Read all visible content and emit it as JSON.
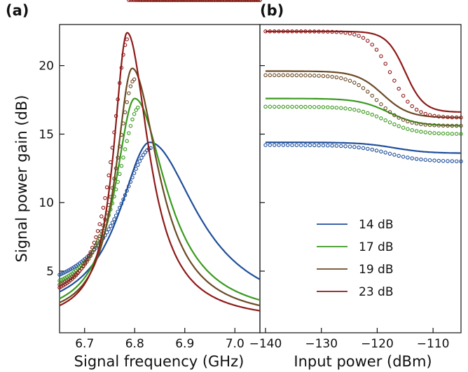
{
  "chart_data": [
    {
      "panel": "(a)",
      "type": "line",
      "xlabel": "Signal frequency (GHz)",
      "ylabel": "Signal power gain (dB)",
      "xlim": [
        6.65,
        7.05
      ],
      "ylim": [
        0.5,
        23
      ],
      "xticks": [
        6.7,
        6.8,
        6.9,
        7.0
      ],
      "yticks": [
        5,
        10,
        15,
        20
      ],
      "xtick_labels": [
        "6.7",
        "6.8",
        "6.9",
        "7.0"
      ],
      "ytick_labels": [
        "5",
        "10",
        "15",
        "20"
      ],
      "grid": false,
      "series": [
        {
          "color": "#1f4e9a",
          "fit": {
            "peak_f": 6.83,
            "peak_g": 14.4,
            "width": 0.075,
            "tail": 1.6,
            "skew": 0.55
          },
          "measured": {
            "peak_f": 6.835,
            "peak_g": 14.0,
            "width": 0.08,
            "tail": 3.0,
            "shoulder": {
              "f": 6.96,
              "g": 1.6
            }
          }
        },
        {
          "color": "#3a9a1e",
          "fit": {
            "peak_f": 6.8,
            "peak_g": 17.6,
            "width": 0.048,
            "tail": 1.5,
            "skew": 0.6
          },
          "measured": {
            "peak_f": 6.81,
            "peak_g": 17.0,
            "width": 0.055,
            "tail": 2.8,
            "shoulder": {
              "f": 6.95,
              "g": 1.2
            }
          }
        },
        {
          "color": "#6b4a24",
          "fit": {
            "peak_f": 6.795,
            "peak_g": 19.8,
            "width": 0.04,
            "tail": 1.4,
            "skew": 0.6
          },
          "measured": {
            "peak_f": 6.8,
            "peak_g": 19.0,
            "width": 0.046,
            "tail": 2.6,
            "shoulder": {
              "f": 6.95,
              "g": 1.0
            }
          }
        },
        {
          "color": "#8e1a1a",
          "fit": {
            "peak_f": 6.785,
            "peak_g": 22.4,
            "width": 0.033,
            "tail": 1.3,
            "skew": 0.6
          },
          "measured": {
            "peak_f": 6.787,
            "peak_g": 22.0,
            "width": 0.038,
            "tail": 2.4,
            "shoulder": {
              "f": 6.95,
              "g": 0.9
            }
          }
        }
      ]
    },
    {
      "panel": "(b)",
      "type": "line",
      "xlabel": "Input power (dBm)",
      "ylabel": "",
      "xlim": [
        -141,
        -105
      ],
      "ylim": [
        0.5,
        23
      ],
      "xticks": [
        -140,
        -130,
        -120,
        -110
      ],
      "xtick_labels": [
        "−140",
        "−130",
        "−120",
        "−110"
      ],
      "grid": false,
      "legend": {
        "placement": "lower-right",
        "entries": [
          "14 dB",
          "17 dB",
          "19 dB",
          "23 dB"
        ]
      },
      "series": [
        {
          "name": "14 dB",
          "color": "#1f4e9a",
          "fit": {
            "flat_g": 14.4,
            "end_g": 13.6,
            "knee": -117,
            "span": 9
          },
          "measured": {
            "flat_g": 14.2,
            "end_g": 13.0,
            "knee": -118,
            "span": 9
          }
        },
        {
          "name": "17 dB",
          "color": "#3a9a1e",
          "fit": {
            "flat_g": 17.6,
            "end_g": 15.6,
            "knee": -118,
            "span": 8
          },
          "measured": {
            "flat_g": 17.0,
            "end_g": 15.0,
            "knee": -118.5,
            "span": 8
          }
        },
        {
          "name": "19 dB",
          "color": "#6b4a24",
          "fit": {
            "flat_g": 19.6,
            "end_g": 16.2,
            "knee": -119,
            "span": 7
          },
          "measured": {
            "flat_g": 19.3,
            "end_g": 15.6,
            "knee": -120,
            "span": 7
          }
        },
        {
          "name": "23 dB",
          "color": "#8e1a1a",
          "fit": {
            "flat_g": 22.5,
            "end_g": 16.6,
            "knee": -115,
            "span": 5
          },
          "measured": {
            "flat_g": 22.5,
            "end_g": 16.2,
            "knee": -117.5,
            "span": 6
          }
        }
      ]
    }
  ]
}
